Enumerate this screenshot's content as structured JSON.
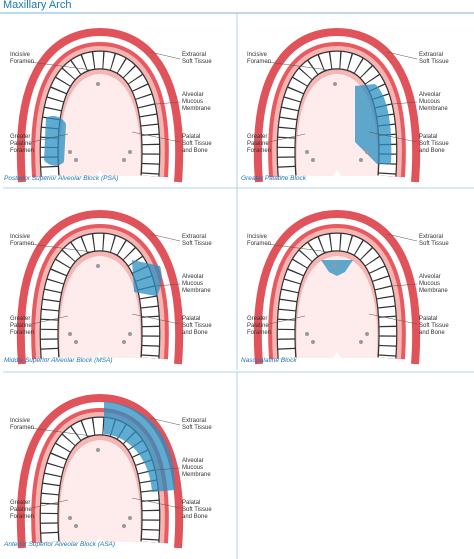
{
  "title": "Maxillary Arch",
  "panels": [
    {
      "caption": "Posterior Superior Alveolar Block (PSA)"
    },
    {
      "caption": "Greater Palatine Block"
    },
    {
      "caption": "Middle Superior Alveolar Block (MSA)"
    },
    {
      "caption": "Nasopalatine Block"
    },
    {
      "caption": "Anterior Superior Alveolar Block (ASA)"
    }
  ],
  "labels": [
    [
      "Incisive",
      "Foramen"
    ],
    [
      "Extraoral",
      "Soft Tissue"
    ],
    [
      "Alveolar",
      "Mucous",
      "Membrane"
    ],
    [
      "Greater",
      "Palatine",
      "Foramen"
    ],
    [
      "Palatal",
      "Soft Tissue",
      "and Bone"
    ]
  ]
}
